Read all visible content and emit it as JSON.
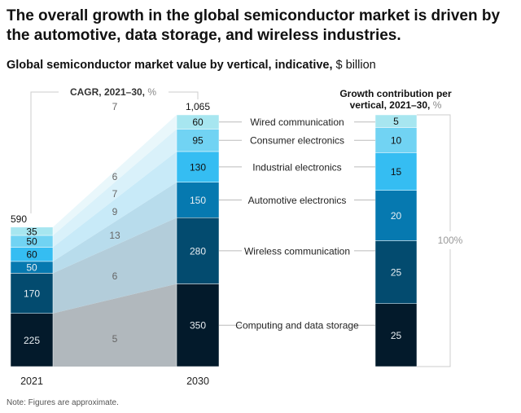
{
  "title": "The overall growth in the global semiconductor market is driven by the automotive, data storage, and wireless industries.",
  "subtitle": {
    "main": "Global semiconductor market value by vertical, indicative,",
    "unit": "$ billion"
  },
  "note": "Note: Figures are approximate.",
  "chart_data": [
    {
      "type": "bar",
      "stacked": true,
      "categories": [
        "2021",
        "2030"
      ],
      "totals": [
        "590",
        "1,065"
      ],
      "series": [
        {
          "name": "Computing and data storage",
          "values": [
            225,
            350
          ],
          "cagr": 5,
          "color": "#031a2b",
          "band_color": "#b1b8bd"
        },
        {
          "name": "Wireless communication",
          "values": [
            170,
            280
          ],
          "cagr": 6,
          "color": "#034b6f",
          "band_color": "#b3cdda"
        },
        {
          "name": "Automotive electronics",
          "values": [
            50,
            150
          ],
          "cagr": 13,
          "color": "#0679b0",
          "band_color": "#b8dcec"
        },
        {
          "name": "Industrial electronics",
          "values": [
            60,
            130
          ],
          "cagr": 9,
          "color": "#35bdf2",
          "band_color": "#c8eaf8"
        },
        {
          "name": "Consumer electronics",
          "values": [
            50,
            95
          ],
          "cagr": 7,
          "color": "#71d3f3",
          "band_color": "#d9f1fa"
        },
        {
          "name": "Wired communication",
          "values": [
            35,
            60
          ],
          "cagr": 6,
          "color": "#a7e6f0",
          "band_color": "#e9f7fb"
        }
      ],
      "cagr_label": {
        "main": "CAGR, 2021–30,",
        "unit": "%"
      },
      "cagr_top_value": 7
    },
    {
      "type": "bar",
      "stacked": true,
      "title": {
        "line1": "Growth contribution per",
        "line2": "vertical, 2021–30,",
        "unit": "%"
      },
      "values": [
        25,
        25,
        20,
        15,
        10,
        5
      ],
      "total_label": "100%"
    }
  ]
}
